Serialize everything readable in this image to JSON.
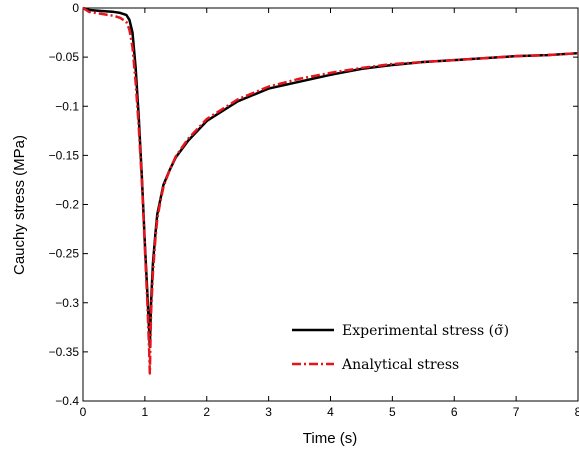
{
  "chart_data": {
    "type": "line",
    "title": "",
    "xlabel": "Time (s)",
    "ylabel": "Cauchy stress (MPa)",
    "xlim": [
      0,
      8
    ],
    "ylim": [
      -0.4,
      0
    ],
    "x_ticks": [
      0,
      1,
      2,
      3,
      4,
      5,
      6,
      7,
      8
    ],
    "x_tick_labels": [
      "0",
      "1",
      "2",
      "3",
      "4",
      "5",
      "6",
      "7",
      "8"
    ],
    "y_ticks": [
      0,
      -0.05,
      -0.1,
      -0.15,
      -0.2,
      -0.25,
      -0.3,
      -0.35,
      -0.4
    ],
    "y_tick_labels": [
      "0",
      "−0.05",
      "−0.1",
      "−0.15",
      "−0.2",
      "−0.25",
      "−0.3",
      "−0.35",
      "−0.4"
    ],
    "grid": false,
    "legend_position": "bottom-right",
    "series": [
      {
        "name": "Experimental stress (σ̃)",
        "color": "#000000",
        "style": "solid",
        "x": [
          0,
          0.1,
          0.3,
          0.5,
          0.6,
          0.7,
          0.75,
          0.8,
          0.85,
          0.9,
          0.95,
          1.0,
          1.04,
          1.07,
          1.08,
          1.1,
          1.13,
          1.17,
          1.2,
          1.25,
          1.3,
          1.4,
          1.5,
          1.7,
          2.0,
          2.5,
          3.0,
          3.5,
          4.0,
          4.5,
          5.0,
          5.5,
          6.0,
          6.5,
          7.0,
          7.5,
          8.0
        ],
        "y": [
          0,
          -0.002,
          -0.003,
          -0.004,
          -0.005,
          -0.007,
          -0.012,
          -0.025,
          -0.06,
          -0.11,
          -0.17,
          -0.24,
          -0.29,
          -0.33,
          -0.345,
          -0.3,
          -0.26,
          -0.23,
          -0.21,
          -0.195,
          -0.18,
          -0.165,
          -0.152,
          -0.135,
          -0.115,
          -0.095,
          -0.082,
          -0.075,
          -0.068,
          -0.062,
          -0.058,
          -0.055,
          -0.053,
          -0.051,
          -0.049,
          -0.048,
          -0.046
        ]
      },
      {
        "name": "Analytical stress",
        "color": "#e8141b",
        "style": "dash-dot",
        "x": [
          0,
          0.1,
          0.3,
          0.5,
          0.6,
          0.7,
          0.75,
          0.8,
          0.85,
          0.9,
          0.95,
          1.0,
          1.04,
          1.07,
          1.08,
          1.1,
          1.13,
          1.17,
          1.2,
          1.25,
          1.3,
          1.4,
          1.5,
          1.7,
          2.0,
          2.5,
          3.0,
          3.5,
          4.0,
          4.5,
          5.0,
          5.5,
          6.0,
          6.5,
          7.0,
          7.5,
          8.0
        ],
        "y": [
          0,
          -0.004,
          -0.006,
          -0.008,
          -0.01,
          -0.014,
          -0.022,
          -0.04,
          -0.075,
          -0.12,
          -0.175,
          -0.245,
          -0.3,
          -0.35,
          -0.372,
          -0.31,
          -0.27,
          -0.235,
          -0.215,
          -0.197,
          -0.182,
          -0.165,
          -0.151,
          -0.133,
          -0.113,
          -0.093,
          -0.08,
          -0.072,
          -0.066,
          -0.061,
          -0.057,
          -0.055,
          -0.053,
          -0.051,
          -0.049,
          -0.048,
          -0.046
        ]
      }
    ]
  }
}
